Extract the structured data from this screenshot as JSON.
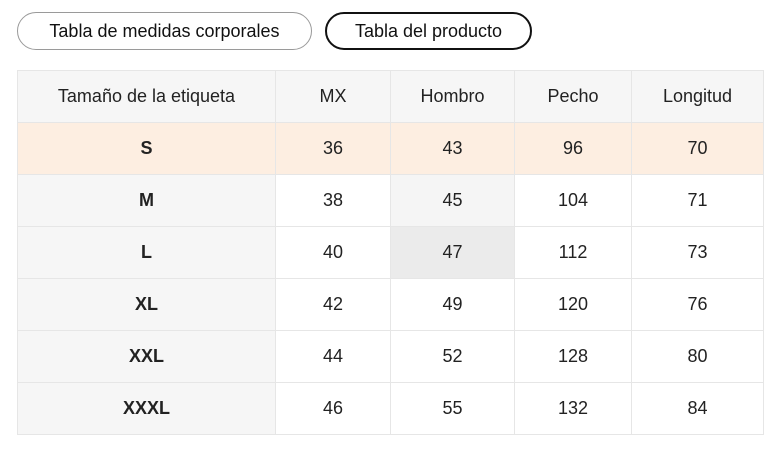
{
  "tabs": [
    "Tabla de medidas corporales",
    "Tabla del producto"
  ],
  "table": {
    "header": [
      "Tamaño de la etiqueta",
      "MX",
      "Hombro",
      "Pecho",
      "Longitud"
    ],
    "rows": [
      [
        "S",
        36,
        43,
        96,
        70
      ],
      [
        "M",
        38,
        45,
        104,
        71
      ],
      [
        "L",
        40,
        47,
        112,
        73
      ],
      [
        "XL",
        42,
        49,
        120,
        76
      ],
      [
        "XXL",
        44,
        52,
        128,
        80
      ],
      [
        "XXXL",
        46,
        55,
        132,
        84
      ]
    ]
  }
}
